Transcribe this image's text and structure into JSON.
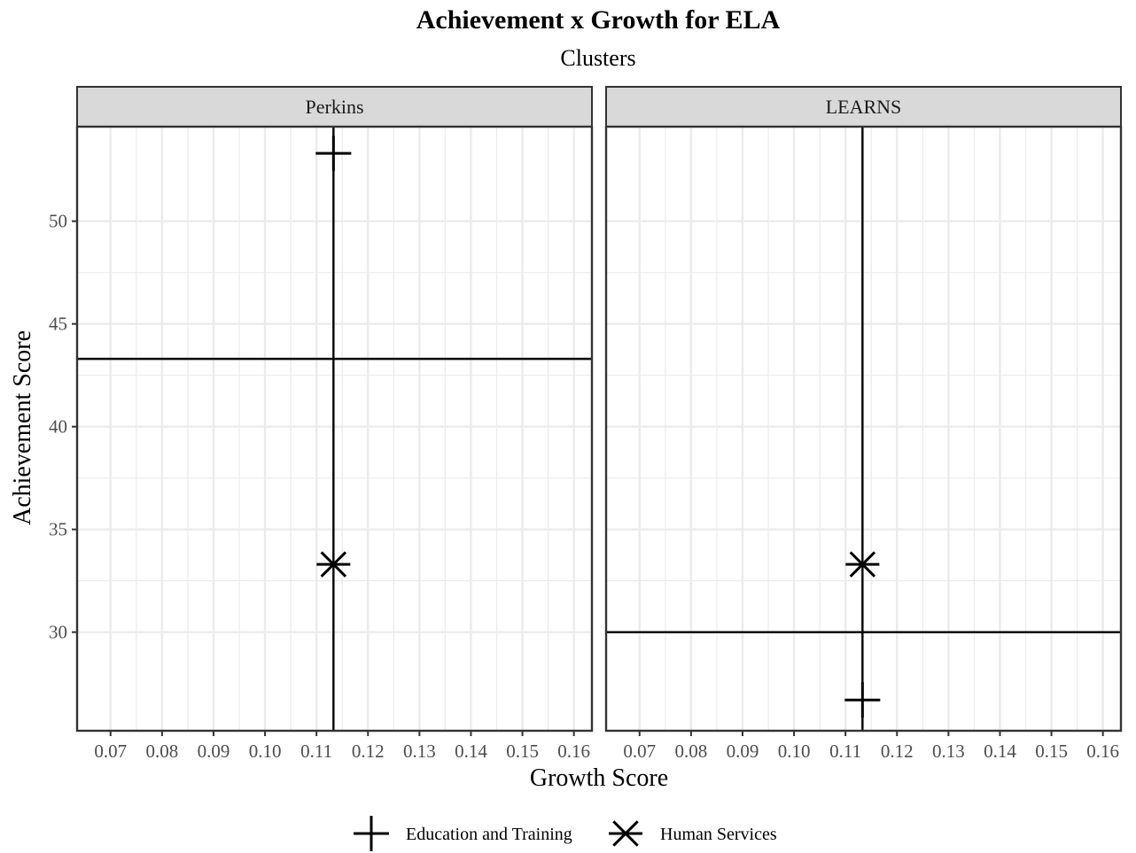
{
  "chart_data": {
    "type": "scatter",
    "title": "Achievement x Growth for ELA",
    "subtitle": "Clusters",
    "xlabel": "Growth Score",
    "ylabel": "Achievement Score",
    "xlim": [
      0.0635,
      0.1635
    ],
    "ylim": [
      25.2,
      54.6
    ],
    "x_ticks": [
      0.07,
      0.08,
      0.09,
      0.1,
      0.11,
      0.12,
      0.13,
      0.14,
      0.15,
      0.16
    ],
    "x_tick_labels": [
      "0.07",
      "0.08",
      "0.09",
      "0.10",
      "0.11",
      "0.12",
      "0.13",
      "0.14",
      "0.15",
      "0.16"
    ],
    "y_ticks": [
      30,
      35,
      40,
      45,
      50
    ],
    "y_tick_labels": [
      "30",
      "35",
      "40",
      "45",
      "50"
    ],
    "grid": true,
    "legend_position": "bottom",
    "legend": [
      {
        "label": "Education and Training",
        "shape": "plus"
      },
      {
        "label": "Human Services",
        "shape": "asterisk"
      }
    ],
    "panels": [
      {
        "label": "Perkins",
        "vline_x": 0.1133,
        "hline_y": 43.3,
        "points": [
          {
            "series": "Education and Training",
            "x": 0.1133,
            "y": 53.3
          },
          {
            "series": "Human Services",
            "x": 0.1133,
            "y": 33.3
          }
        ]
      },
      {
        "label": "LEARNS",
        "vline_x": 0.1133,
        "hline_y": 30.0,
        "points": [
          {
            "series": "Education and Training",
            "x": 0.1133,
            "y": 26.7
          },
          {
            "series": "Human Services",
            "x": 0.1133,
            "y": 33.3
          }
        ]
      }
    ]
  }
}
